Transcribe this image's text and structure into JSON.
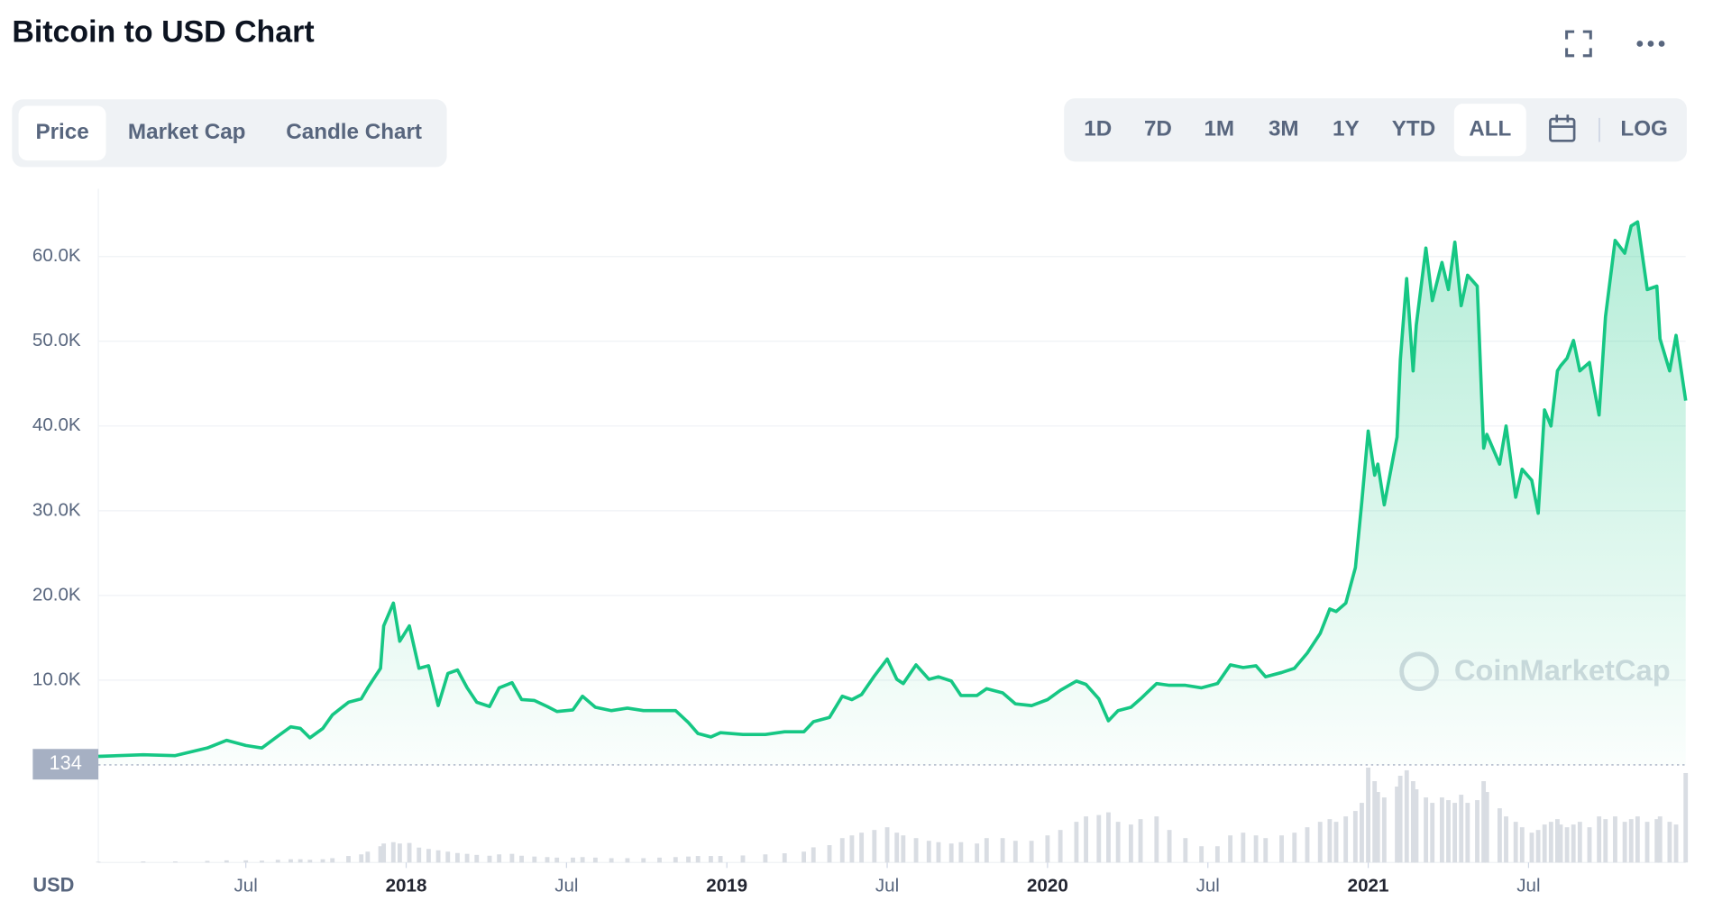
{
  "header": {
    "title": "Bitcoin to USD Chart",
    "tabs": [
      "Price",
      "Market Cap",
      "Candle Chart"
    ],
    "active_tab": 0,
    "ranges": [
      "1D",
      "7D",
      "1M",
      "3M",
      "1Y",
      "YTD",
      "ALL"
    ],
    "active_range": 6,
    "scale_button": "LOG"
  },
  "chart_data": {
    "type": "line",
    "x": [
      2017.04,
      2017.18,
      2017.28,
      2017.38,
      2017.44,
      2017.5,
      2017.55,
      2017.6,
      2017.64,
      2017.67,
      2017.7,
      2017.74,
      2017.77,
      2017.82,
      2017.86,
      2017.88,
      2017.92,
      2017.93,
      2017.96,
      2017.98,
      2018.01,
      2018.04,
      2018.07,
      2018.1,
      2018.13,
      2018.16,
      2018.19,
      2018.22,
      2018.26,
      2018.29,
      2018.33,
      2018.36,
      2018.4,
      2018.44,
      2018.47,
      2018.52,
      2018.55,
      2018.59,
      2018.64,
      2018.69,
      2018.74,
      2018.79,
      2018.84,
      2018.88,
      2018.91,
      2018.95,
      2018.98,
      2019.05,
      2019.12,
      2019.18,
      2019.24,
      2019.27,
      2019.32,
      2019.36,
      2019.39,
      2019.42,
      2019.46,
      2019.5,
      2019.53,
      2019.55,
      2019.59,
      2019.63,
      2019.66,
      2019.7,
      2019.73,
      2019.78,
      2019.81,
      2019.86,
      2019.9,
      2019.95,
      2020.0,
      2020.04,
      2020.09,
      2020.12,
      2020.16,
      2020.19,
      2020.22,
      2020.26,
      2020.29,
      2020.34,
      2020.38,
      2020.43,
      2020.48,
      2020.53,
      2020.57,
      2020.61,
      2020.65,
      2020.68,
      2020.73,
      2020.77,
      2020.81,
      2020.85,
      2020.88,
      2020.9,
      2020.93,
      2020.96,
      2020.98,
      2021.0,
      2021.02,
      2021.03,
      2021.05,
      2021.09,
      2021.1,
      2021.12,
      2021.14,
      2021.15,
      2021.18,
      2021.2,
      2021.23,
      2021.25,
      2021.27,
      2021.29,
      2021.31,
      2021.34,
      2021.36,
      2021.37,
      2021.41,
      2021.43,
      2021.46,
      2021.48,
      2021.51,
      2021.53,
      2021.55,
      2021.57,
      2021.59,
      2021.6,
      2021.62,
      2021.64,
      2021.66,
      2021.69,
      2021.72,
      2021.74,
      2021.77,
      2021.8,
      2021.82,
      2021.84,
      2021.87,
      2021.9,
      2021.91,
      2021.94,
      2021.96,
      2021.99
    ],
    "series": [
      {
        "color": "#16c784",
        "fill": true,
        "values": [
          1000,
          1200,
          1100,
          2000,
          2900,
          2300,
          2000,
          3400,
          4500,
          4300,
          3200,
          4300,
          5900,
          7400,
          7800,
          9100,
          11400,
          16400,
          19100,
          14600,
          16400,
          11400,
          11700,
          7000,
          10800,
          11200,
          9100,
          7400,
          6900,
          9100,
          9700,
          7700,
          7600,
          6900,
          6300,
          6500,
          8100,
          6800,
          6400,
          6700,
          6400,
          6400,
          6400,
          5000,
          3700,
          3300,
          3800,
          3600,
          3600,
          3900,
          3900,
          5100,
          5600,
          8100,
          7700,
          8300,
          10500,
          12500,
          10100,
          9600,
          11800,
          10100,
          10400,
          9900,
          8200,
          8200,
          9000,
          8500,
          7200,
          7000,
          7700,
          8800,
          9900,
          9500,
          7800,
          5200,
          6400,
          6800,
          7800,
          9600,
          9400,
          9400,
          9100,
          9600,
          11800,
          11500,
          11700,
          10400,
          10900,
          11400,
          13200,
          15500,
          18400,
          18100,
          19100,
          23300,
          31000,
          39400,
          34200,
          35500,
          30700,
          38700,
          47800,
          57400,
          46500,
          51900,
          61000,
          54800,
          59300,
          56100,
          61700,
          54200,
          57800,
          56500,
          37400,
          39000,
          35500,
          40000,
          31600,
          34900,
          33600,
          29700,
          41900,
          40000,
          46500,
          47100,
          48000,
          50100,
          46500,
          47500,
          41300,
          52900,
          61900,
          60400,
          63600,
          64100,
          56100,
          56500,
          50300,
          46500,
          50700,
          43000
        ]
      },
      {
        "color": "#d9dde3",
        "type": "bar",
        "axis": "y2",
        "values": [
          3,
          4,
          4,
          6,
          8,
          8,
          7,
          10,
          12,
          12,
          10,
          12,
          16,
          24,
          30,
          40,
          60,
          70,
          75,
          70,
          72,
          55,
          50,
          45,
          40,
          35,
          32,
          28,
          25,
          30,
          32,
          25,
          22,
          20,
          18,
          18,
          20,
          18,
          16,
          16,
          16,
          18,
          20,
          22,
          24,
          24,
          24,
          26,
          30,
          34,
          40,
          56,
          64,
          90,
          100,
          110,
          120,
          130,
          110,
          100,
          90,
          80,
          75,
          70,
          75,
          70,
          90,
          90,
          80,
          80,
          100,
          120,
          150,
          170,
          175,
          185,
          150,
          140,
          160,
          170,
          120,
          90,
          60,
          60,
          100,
          110,
          100,
          90,
          100,
          110,
          130,
          150,
          160,
          150,
          170,
          190,
          220,
          350,
          300,
          260,
          240,
          280,
          320,
          340,
          300,
          270,
          240,
          220,
          240,
          230,
          220,
          250,
          220,
          230,
          300,
          260,
          200,
          170,
          150,
          130,
          110,
          120,
          140,
          150,
          160,
          140,
          130,
          140,
          150,
          130,
          170,
          160,
          170,
          150,
          160,
          170,
          150,
          160,
          170,
          150,
          140,
          330
        ]
      }
    ],
    "xlim": [
      2017.04,
      2021.99
    ],
    "xticks": [
      {
        "value": 2017.5,
        "label": "Jul"
      },
      2018,
      {
        "value": 2018.5,
        "label": "Jul"
      },
      2019,
      {
        "value": 2019.5,
        "label": "Jul"
      },
      2020,
      {
        "value": 2020.5,
        "label": "Jul"
      },
      2021,
      {
        "value": 2021.5,
        "label": "Jul"
      }
    ],
    "ylim": [
      0,
      68000
    ],
    "yticks": [
      {
        "value": 10000,
        "label": "10.0K"
      },
      {
        "value": 20000,
        "label": "20.0K"
      },
      {
        "value": 30000,
        "label": "30.0K"
      },
      {
        "value": 40000,
        "label": "40.0K"
      },
      {
        "value": 50000,
        "label": "50.0K"
      },
      {
        "value": 60000,
        "label": "60.0K"
      }
    ],
    "y2lim": [
      0,
      360
    ],
    "grid": true,
    "unit_label": "USD",
    "marker_label": "134",
    "watermark": "CoinMarketCap"
  }
}
